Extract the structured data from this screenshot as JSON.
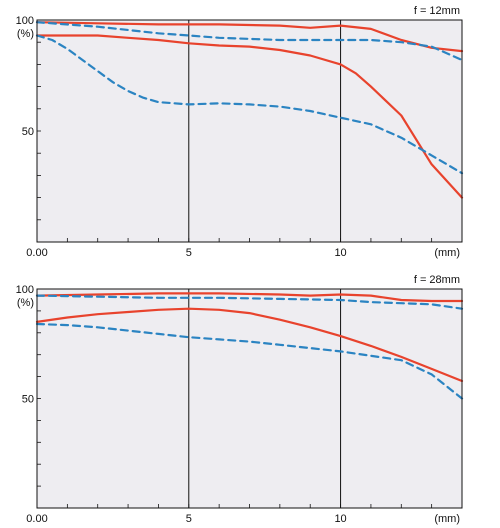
{
  "chart_data": [
    {
      "type": "line",
      "focal_label": "f = 12mm",
      "x_unit": "(mm)",
      "y_unit": "(%)",
      "xlim": [
        0,
        14
      ],
      "ylim": [
        0,
        100
      ],
      "x_tick_labels": [
        "0.00",
        "5",
        "10"
      ],
      "x_tick_values": [
        0,
        5,
        10
      ],
      "y_tick_labels": [
        "100",
        "50"
      ],
      "y_tick_values": [
        100,
        50
      ],
      "grid_vertical_at": [
        5,
        10
      ],
      "series": [
        {
          "color": "#e8432d",
          "dash": "solid",
          "x": [
            0,
            2,
            4,
            6,
            8,
            9,
            10,
            11,
            12,
            13,
            14
          ],
          "y": [
            99,
            98.5,
            98,
            98,
            97.5,
            96.5,
            97.5,
            96,
            91,
            87.5,
            86
          ]
        },
        {
          "color": "#e8432d",
          "dash": "solid",
          "x": [
            0,
            1,
            2,
            3,
            4,
            5,
            6,
            7,
            8,
            9,
            10,
            10.5,
            11,
            12,
            13,
            14
          ],
          "y": [
            93,
            93,
            93,
            92,
            91,
            89.5,
            88.5,
            88,
            86.5,
            84,
            80,
            76,
            70,
            57,
            35,
            20
          ]
        },
        {
          "color": "#2b84c2",
          "dash": "dashed",
          "x": [
            0,
            2,
            4,
            5,
            6,
            8,
            10,
            11,
            12,
            13,
            14
          ],
          "y": [
            99,
            97,
            94,
            93,
            92,
            91,
            91,
            91,
            90,
            88,
            82
          ]
        },
        {
          "color": "#2b84c2",
          "dash": "dashed",
          "x": [
            0,
            0.5,
            1,
            1.5,
            2,
            2.5,
            3,
            3.5,
            4,
            5,
            6,
            7,
            8,
            9,
            10,
            11,
            12,
            13,
            14
          ],
          "y": [
            93,
            91,
            87,
            82,
            77,
            72,
            68,
            65,
            63,
            62,
            62.5,
            62,
            61,
            59,
            56,
            53,
            47,
            39,
            31
          ]
        }
      ]
    },
    {
      "type": "line",
      "focal_label": "f = 28mm",
      "x_unit": "(mm)",
      "y_unit": "(%)",
      "xlim": [
        0,
        14
      ],
      "ylim": [
        0,
        100
      ],
      "x_tick_labels": [
        "0.00",
        "5",
        "10"
      ],
      "x_tick_values": [
        0,
        5,
        10
      ],
      "y_tick_labels": [
        "100",
        "50"
      ],
      "y_tick_values": [
        100,
        50
      ],
      "grid_vertical_at": [
        5,
        10
      ],
      "series": [
        {
          "color": "#e8432d",
          "dash": "solid",
          "x": [
            0,
            2,
            4,
            5,
            6,
            8,
            9,
            10,
            11,
            12,
            13,
            14
          ],
          "y": [
            97,
            97.5,
            98,
            98,
            98,
            97.5,
            97,
            97.5,
            97,
            95,
            94.5,
            94.5
          ]
        },
        {
          "color": "#e8432d",
          "dash": "solid",
          "x": [
            0,
            1,
            2,
            3,
            4,
            5,
            6,
            7,
            8,
            9,
            10,
            11,
            12,
            13,
            14
          ],
          "y": [
            85,
            87,
            88.5,
            89.5,
            90.5,
            91,
            90.5,
            89,
            86,
            82.5,
            78.5,
            74,
            69,
            63.5,
            58
          ]
        },
        {
          "color": "#2b84c2",
          "dash": "dashed",
          "x": [
            0,
            2,
            4,
            6,
            8,
            10,
            11,
            12,
            13,
            14
          ],
          "y": [
            97,
            96.5,
            96,
            96,
            95.5,
            95,
            94,
            93.5,
            93,
            91
          ]
        },
        {
          "color": "#2b84c2",
          "dash": "dashed",
          "x": [
            0,
            1,
            2,
            3,
            4,
            5,
            6,
            7,
            8,
            9,
            10,
            11,
            12,
            13,
            14
          ],
          "y": [
            84,
            83.5,
            82.5,
            81,
            79.5,
            78,
            77,
            76,
            74.5,
            73,
            71.5,
            69.5,
            67.5,
            61,
            50
          ]
        }
      ]
    }
  ]
}
